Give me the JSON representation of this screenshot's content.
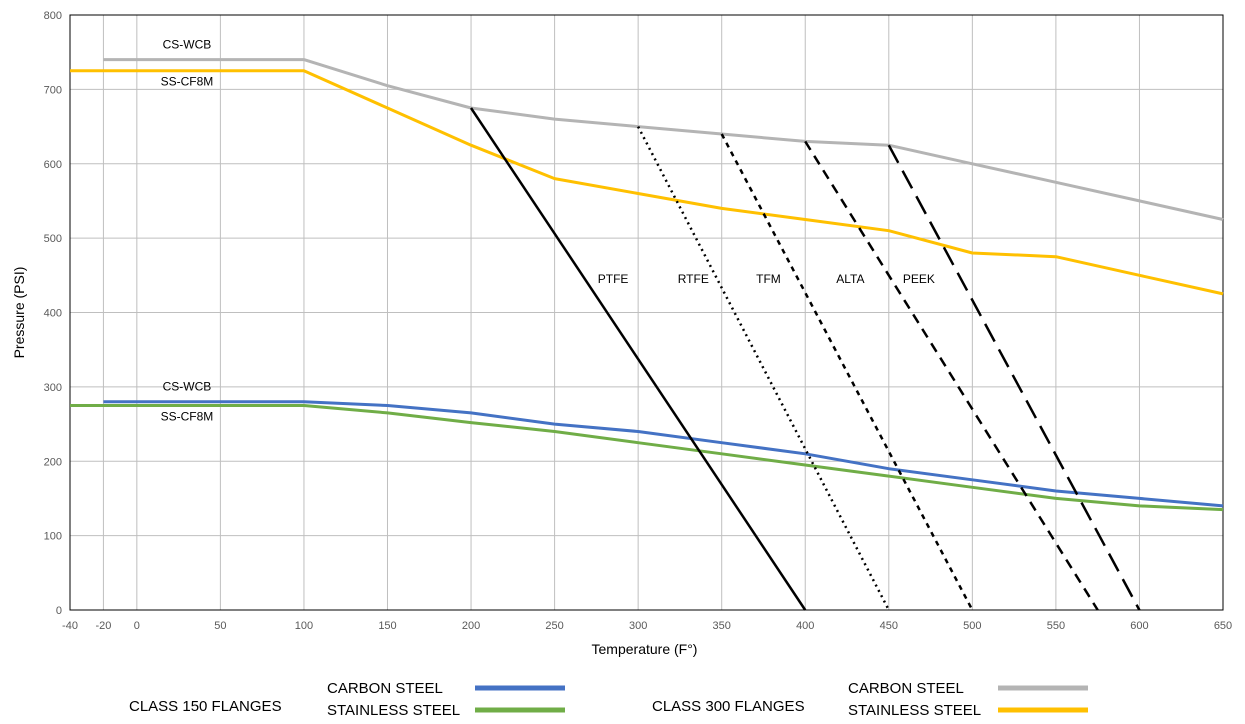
{
  "chart_data": {
    "type": "line",
    "title": "",
    "xlabel": "Temperature (F°)",
    "ylabel": "Pressure (PSI)",
    "xlim": [
      -40,
      650
    ],
    "ylim": [
      0,
      800
    ],
    "grid": true,
    "x_ticks": [
      -40,
      -20,
      0,
      50,
      100,
      150,
      200,
      250,
      300,
      350,
      400,
      450,
      500,
      550,
      600,
      650
    ],
    "y_ticks": [
      0,
      100,
      200,
      300,
      400,
      500,
      600,
      700,
      800
    ],
    "series": [
      {
        "name": "CARBON STEEL",
        "group": "CLASS 300 FLANGES",
        "color": "#b4b4b4",
        "dash": "solid",
        "points": [
          [
            -20,
            740
          ],
          [
            100,
            740
          ],
          [
            150,
            705
          ],
          [
            200,
            675
          ],
          [
            250,
            660
          ],
          [
            300,
            650
          ],
          [
            350,
            640
          ],
          [
            400,
            630
          ],
          [
            450,
            625
          ],
          [
            500,
            600
          ],
          [
            550,
            575
          ],
          [
            600,
            550
          ],
          [
            650,
            525
          ]
        ]
      },
      {
        "name": "STAINLESS STEEL",
        "group": "CLASS 300 FLANGES",
        "color": "#ffc000",
        "dash": "solid",
        "points": [
          [
            -40,
            725
          ],
          [
            100,
            725
          ],
          [
            150,
            675
          ],
          [
            200,
            625
          ],
          [
            250,
            580
          ],
          [
            300,
            560
          ],
          [
            350,
            540
          ],
          [
            400,
            525
          ],
          [
            450,
            510
          ],
          [
            500,
            480
          ],
          [
            550,
            475
          ],
          [
            600,
            450
          ],
          [
            650,
            425
          ]
        ]
      },
      {
        "name": "CARBON STEEL",
        "group": "CLASS 150 FLANGES",
        "color": "#4472c4",
        "dash": "solid",
        "points": [
          [
            -20,
            280
          ],
          [
            100,
            280
          ],
          [
            150,
            275
          ],
          [
            200,
            265
          ],
          [
            250,
            250
          ],
          [
            300,
            240
          ],
          [
            350,
            225
          ],
          [
            400,
            210
          ],
          [
            450,
            190
          ],
          [
            500,
            175
          ],
          [
            550,
            160
          ],
          [
            600,
            150
          ],
          [
            650,
            140
          ]
        ]
      },
      {
        "name": "STAINLESS STEEL",
        "group": "CLASS 150 FLANGES",
        "color": "#70ad47",
        "dash": "solid",
        "points": [
          [
            -40,
            275
          ],
          [
            100,
            275
          ],
          [
            150,
            265
          ],
          [
            200,
            252
          ],
          [
            250,
            240
          ],
          [
            300,
            225
          ],
          [
            350,
            210
          ],
          [
            400,
            195
          ],
          [
            450,
            180
          ],
          [
            500,
            165
          ],
          [
            550,
            150
          ],
          [
            600,
            140
          ],
          [
            650,
            135
          ]
        ]
      },
      {
        "name": "PTFE",
        "color": "#000000",
        "dash": "solid",
        "points": [
          [
            200,
            675
          ],
          [
            400,
            0
          ]
        ]
      },
      {
        "name": "RTFE",
        "color": "#000000",
        "dash": "dot",
        "points": [
          [
            300,
            650
          ],
          [
            450,
            0
          ]
        ]
      },
      {
        "name": "TFM",
        "color": "#000000",
        "dash": "short-dash",
        "points": [
          [
            350,
            640
          ],
          [
            500,
            0
          ]
        ]
      },
      {
        "name": "ALTA",
        "color": "#000000",
        "dash": "dash",
        "points": [
          [
            400,
            630
          ],
          [
            575,
            0
          ]
        ]
      },
      {
        "name": "PEEK",
        "color": "#000000",
        "dash": "long-dash",
        "points": [
          [
            450,
            625
          ],
          [
            600,
            0
          ]
        ]
      }
    ],
    "annotations": [
      {
        "text": "CS-WCB",
        "x": 30,
        "y": 755
      },
      {
        "text": "SS-CF8M",
        "x": 30,
        "y": 705
      },
      {
        "text": "CS-WCB",
        "x": 30,
        "y": 295
      },
      {
        "text": "SS-CF8M",
        "x": 30,
        "y": 255
      },
      {
        "text": "PTFE",
        "x": 285,
        "y": 440
      },
      {
        "text": "RTFE",
        "x": 333,
        "y": 440
      },
      {
        "text": "TFM",
        "x": 378,
        "y": 440
      },
      {
        "text": "ALTA",
        "x": 427,
        "y": 440
      },
      {
        "text": "PEEK",
        "x": 468,
        "y": 440
      }
    ],
    "legend": {
      "placement": "bottom",
      "groups": [
        {
          "title": "CLASS 150 FLANGES",
          "items": [
            {
              "label": "CARBON STEEL",
              "color": "#4472c4"
            },
            {
              "label": "STAINLESS STEEL",
              "color": "#70ad47"
            }
          ]
        },
        {
          "title": "CLASS 300 FLANGES",
          "items": [
            {
              "label": "CARBON STEEL",
              "color": "#b4b4b4"
            },
            {
              "label": "STAINLESS STEEL",
              "color": "#ffc000"
            }
          ]
        }
      ]
    }
  }
}
